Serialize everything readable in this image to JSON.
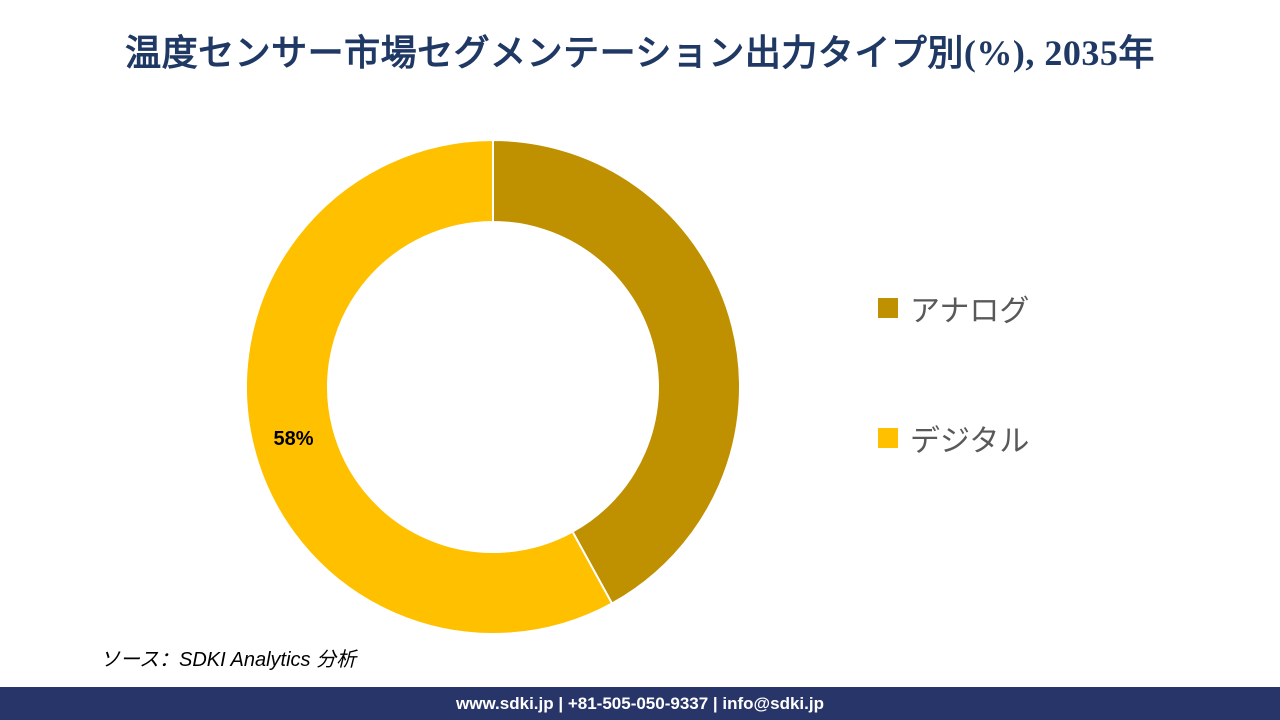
{
  "title": {
    "text": "温度センサー市場セグメンテーション出力タイプ別(%), 2035年",
    "color": "#1F3864"
  },
  "chart_data": {
    "type": "pie",
    "subtype": "donut",
    "title": "温度センサー市場セグメンテーション出力タイプ別(%), 2035年",
    "categories": [
      "アナログ",
      "デジタル"
    ],
    "values": [
      42,
      58
    ],
    "colors": [
      "#BF9000",
      "#FFC000"
    ],
    "slice_ids": [
      "analog",
      "digital"
    ],
    "data_labels": [
      "",
      "58%"
    ],
    "data_label_color": "#000000",
    "start_angle_deg": 0,
    "direction": "clockwise",
    "donut_hole_ratio": 0.67,
    "slice_stroke_color": "#FFFFFF",
    "legend_position": "right"
  },
  "legend": {
    "items": [
      {
        "label": "アナログ",
        "color": "#BF9000"
      },
      {
        "label": "デジタル",
        "color": "#FFC000"
      }
    ]
  },
  "source_note": {
    "text": "ソース：SDKI Analytics  分析"
  },
  "footer": {
    "text": "www.sdki.jp | +81-505-050-9337 | info@sdki.jp",
    "background": "#283568",
    "text_color": "#FFFFFF"
  }
}
